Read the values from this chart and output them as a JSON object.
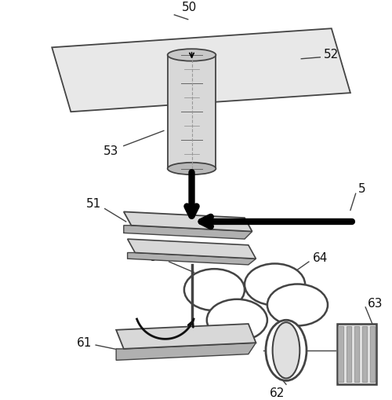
{
  "bg_color": "#ffffff",
  "line_color": "#111111",
  "dark_gray": "#444444",
  "mid_gray": "#888888",
  "light_gray": "#cccccc",
  "label_fontsize": 11,
  "figsize": [
    5.0,
    5.09
  ],
  "dpi": 100
}
